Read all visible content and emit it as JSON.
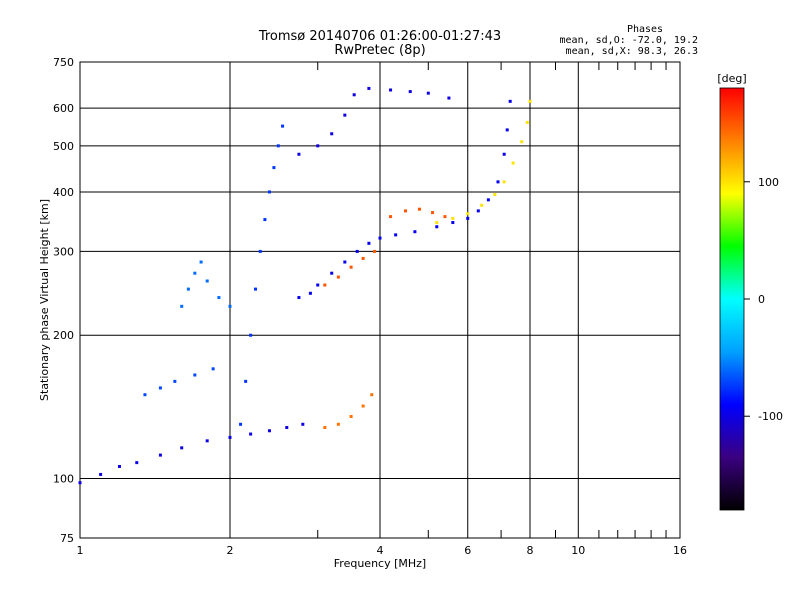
{
  "chart_data": {
    "type": "scatter",
    "title": "Tromsø 20140706 01:26:00-01:27:43",
    "subtitle": "RwPretec (8p)",
    "xlabel": "Frequency [MHz]",
    "ylabel": "Stationary phase Virtual Height [km]",
    "x_scale": "log",
    "y_scale": "log",
    "xlim": [
      1,
      16
    ],
    "ylim": [
      75,
      750
    ],
    "x_ticks": [
      1,
      2,
      4,
      6,
      8,
      10,
      16
    ],
    "y_ticks": [
      75,
      100,
      200,
      300,
      400,
      500,
      600,
      750
    ],
    "grid": true,
    "stats": {
      "heading": "Phases",
      "line_o": "mean, sd,O: -72.0, 19.2",
      "line_x": "mean, sd,X:  98.3, 26.3"
    },
    "colorbar": {
      "label": "[deg]",
      "range": [
        -180,
        180
      ],
      "ticks": [
        100,
        0,
        -100
      ],
      "stops": [
        "#000000",
        "#3a0080",
        "#0000ff",
        "#00a0ff",
        "#00ffff",
        "#00ff00",
        "#ffff00",
        "#ff8000",
        "#ff0000"
      ]
    },
    "traces": [
      {
        "name": "",
        "phase": -100,
        "points": [
          [
            1.0,
            98
          ],
          [
            1.1,
            102
          ],
          [
            1.2,
            106
          ],
          [
            1.3,
            108
          ],
          [
            1.45,
            112
          ],
          [
            1.6,
            116
          ],
          [
            1.8,
            120
          ],
          [
            2.0,
            122
          ],
          [
            2.2,
            124
          ],
          [
            2.4,
            126
          ],
          [
            2.6,
            128
          ],
          [
            2.8,
            130
          ]
        ]
      },
      {
        "name": "",
        "phase": -95,
        "points": [
          [
            2.75,
            240
          ],
          [
            2.9,
            245
          ],
          [
            3.0,
            255
          ],
          [
            3.2,
            270
          ],
          [
            3.4,
            285
          ],
          [
            3.6,
            300
          ],
          [
            3.8,
            312
          ],
          [
            4.0,
            320
          ],
          [
            4.3,
            325
          ],
          [
            4.7,
            330
          ],
          [
            5.2,
            338
          ],
          [
            5.6,
            345
          ],
          [
            6.0,
            352
          ],
          [
            6.3,
            365
          ],
          [
            6.6,
            385
          ],
          [
            6.9,
            420
          ],
          [
            7.1,
            480
          ],
          [
            7.2,
            540
          ],
          [
            7.3,
            620
          ]
        ]
      },
      {
        "name": "",
        "phase": 100,
        "points": [
          [
            5.2,
            345
          ],
          [
            5.6,
            352
          ],
          [
            6.0,
            360
          ],
          [
            6.4,
            375
          ],
          [
            6.8,
            395
          ],
          [
            7.1,
            420
          ],
          [
            7.4,
            460
          ],
          [
            7.7,
            510
          ],
          [
            7.9,
            560
          ],
          [
            8.0,
            620
          ]
        ]
      },
      {
        "name": "",
        "phase": -100,
        "points": [
          [
            2.75,
            480
          ],
          [
            3.0,
            500
          ],
          [
            3.2,
            530
          ],
          [
            3.4,
            580
          ],
          [
            3.55,
            640
          ],
          [
            3.8,
            660
          ],
          [
            4.2,
            655
          ],
          [
            4.6,
            650
          ],
          [
            5.0,
            645
          ],
          [
            5.5,
            630
          ]
        ]
      },
      {
        "name": "",
        "phase": 150,
        "points": [
          [
            3.1,
            255
          ],
          [
            3.3,
            265
          ],
          [
            3.5,
            278
          ],
          [
            3.7,
            290
          ],
          [
            3.9,
            300
          ]
        ]
      },
      {
        "name": "",
        "phase": 150,
        "points": [
          [
            4.2,
            355
          ],
          [
            4.5,
            365
          ],
          [
            4.8,
            368
          ],
          [
            5.1,
            362
          ],
          [
            5.4,
            355
          ]
        ]
      },
      {
        "name": "",
        "phase": 140,
        "points": [
          [
            3.1,
            128
          ],
          [
            3.3,
            130
          ],
          [
            3.5,
            135
          ],
          [
            3.7,
            142
          ],
          [
            3.85,
            150
          ]
        ]
      },
      {
        "name": "",
        "phase": -60,
        "points": [
          [
            1.6,
            230
          ],
          [
            1.65,
            250
          ],
          [
            1.7,
            270
          ],
          [
            1.75,
            285
          ],
          [
            1.8,
            260
          ],
          [
            1.9,
            240
          ],
          [
            2.0,
            230
          ]
        ]
      },
      {
        "name": "",
        "phase": -70,
        "points": [
          [
            1.35,
            150
          ],
          [
            1.45,
            155
          ],
          [
            1.55,
            160
          ],
          [
            1.7,
            165
          ],
          [
            1.85,
            170
          ]
        ]
      },
      {
        "name": "",
        "phase": -75,
        "points": [
          [
            2.1,
            130
          ],
          [
            2.15,
            160
          ],
          [
            2.2,
            200
          ],
          [
            2.25,
            250
          ],
          [
            2.3,
            300
          ],
          [
            2.35,
            350
          ],
          [
            2.4,
            400
          ],
          [
            2.45,
            450
          ],
          [
            2.5,
            500
          ],
          [
            2.55,
            550
          ]
        ]
      }
    ]
  }
}
